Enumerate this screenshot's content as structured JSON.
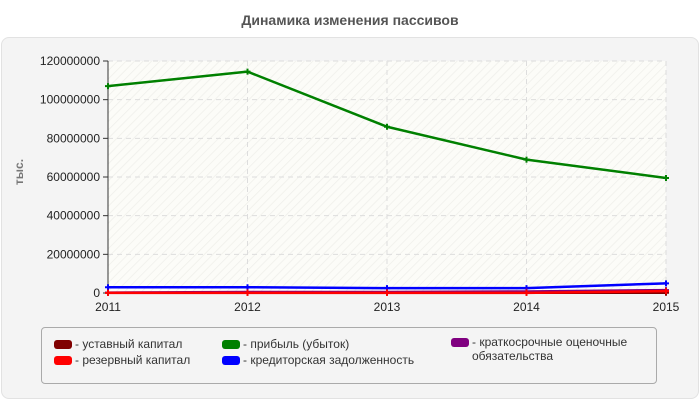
{
  "chart_data": {
    "type": "line",
    "title": "Динамика изменения пассивов",
    "xlabel": "",
    "ylabel": "тыс.",
    "x": [
      "2011",
      "2012",
      "2013",
      "2014",
      "2015"
    ],
    "ylim": [
      0,
      120000000
    ],
    "yticks": [
      "0",
      "20000000",
      "40000000",
      "60000000",
      "80000000",
      "100000000",
      "120000000"
    ],
    "grid": true,
    "legend_position": "bottom",
    "series": [
      {
        "name": "уставный капитал",
        "color": "#800000",
        "values": [
          100000,
          100000,
          100000,
          100000,
          100000
        ]
      },
      {
        "name": "резервный капитал",
        "color": "#ff0000",
        "values": [
          50000,
          50000,
          50000,
          50000,
          1000000
        ]
      },
      {
        "name": "прибыль (убыток)",
        "color": "#008000",
        "values": [
          107000000,
          114500000,
          86000000,
          69000000,
          59500000
        ]
      },
      {
        "name": "кредиторская задолженность",
        "color": "#0000ff",
        "values": [
          3000000,
          3000000,
          2500000,
          2500000,
          5000000
        ]
      },
      {
        "name": "краткосрочные оценочные обязательства",
        "color": "#800080",
        "values": [
          200000,
          500000,
          500000,
          800000,
          1500000
        ]
      }
    ]
  },
  "legend": {
    "items": [
      {
        "label": "- уставный капитал",
        "color": "#800000"
      },
      {
        "label": "- резервный капитал",
        "color": "#ff0000"
      },
      {
        "label": "- прибыль (убыток)",
        "color": "#008000"
      },
      {
        "label": "- кредиторская задолженность",
        "color": "#0000ff"
      },
      {
        "label": "- краткосрочные оценочные обязательства",
        "color": "#800080"
      }
    ]
  }
}
